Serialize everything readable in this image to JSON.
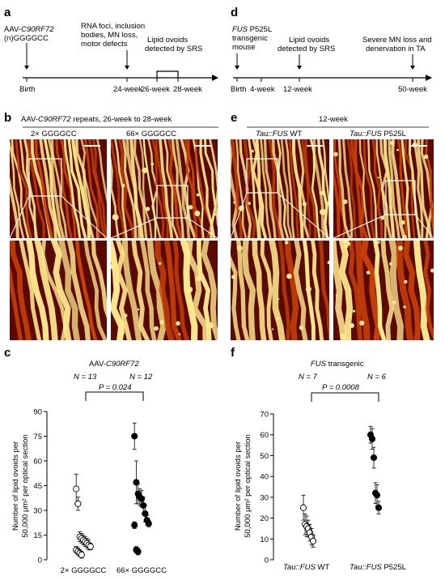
{
  "panels": {
    "a": {
      "letter": "a",
      "construct_line1": "AAV-",
      "construct_italic": "C90RF72",
      "construct_line2": "(n)GGGGCC",
      "ev_24_l1": "RNA foci, inclusion",
      "ev_24_l2": "bodies, MN loss,",
      "ev_24_l3": "motor defects",
      "ev_srs_l1": "Lipid ovoids",
      "ev_srs_l2": "detected by SRS",
      "t_birth": "Birth",
      "t_24": "24-week",
      "t_26": "26-week",
      "t_28": "28-week"
    },
    "b": {
      "letter": "b",
      "title_pre": "AAV-",
      "title_italic": "C90RF72",
      "title_post": " repeats, 26-week to 28-week",
      "label_left": "2× GGGGCC",
      "label_right": "66× GGGGCC"
    },
    "d": {
      "letter": "d",
      "title_italic": "FUS",
      "title_post": " P525L",
      "title_l2": "transgenic",
      "title_l3": "mouse",
      "ev_srs_l1": "Lipid ovoids",
      "ev_srs_l2": "detected by SRS",
      "ev_50_l1": "Severe MN loss and",
      "ev_50_l2": "denervation in TA",
      "t_birth": "Birth",
      "t_4": "4-week",
      "t_12": "12-week",
      "t_50": "50-week"
    },
    "e": {
      "letter": "e",
      "title": "12-week",
      "label_left_italic": "Tau::FUS",
      "label_left_post": " WT",
      "label_right_italic": "Tau::FUS",
      "label_right_post": " P525L"
    },
    "c": {
      "letter": "c",
      "title_pre": "AAV-",
      "title_italic": "C90RF72",
      "n_left": "N = 13",
      "n_right": "N = 12",
      "p_value": "P = 0.024",
      "ylabel_l1": "Number of lipid ovoids per",
      "ylabel_l2": "50,000 μm² per optical section"
    },
    "f": {
      "letter": "f",
      "title_italic": "FUS",
      "title_post": " transgenic",
      "n_left": "N = 7",
      "n_right": "N = 6",
      "p_value": "P = 0.0008",
      "ylabel_l1": "Number of lipid ovoids per",
      "ylabel_l2": "50,000 μm² per optical section",
      "xlabel_left_italic": "Tau::FUS",
      "xlabel_left_post": " WT",
      "xlabel_right_italic": "Tau::FUS",
      "xlabel_right_post": " P525L"
    }
  },
  "colors": {
    "image_dark": "#5a0a00",
    "image_mid": "#c8400a",
    "image_bright": "#ffe890",
    "scale_bar": "#ffffff"
  },
  "chart_data": [
    {
      "panel": "c",
      "type": "scatter",
      "categories": [
        "2× GGGGCC",
        "66× GGGGCC"
      ],
      "ylim": [
        0,
        90
      ],
      "yticks": [
        0,
        15,
        30,
        45,
        60,
        75,
        90
      ],
      "series": [
        {
          "category": "2× GGGGCC",
          "marker": "open-circle",
          "points": [
            {
              "y": 43,
              "err": 9
            },
            {
              "y": 34,
              "err": 4
            },
            {
              "y": 14,
              "err": 3
            },
            {
              "y": 13,
              "err": 3
            },
            {
              "y": 12,
              "err": 3
            },
            {
              "y": 11,
              "err": 3
            },
            {
              "y": 10,
              "err": 3
            },
            {
              "y": 9,
              "err": 3
            },
            {
              "y": 8,
              "err": 2
            },
            {
              "y": 6,
              "err": 2
            },
            {
              "y": 5,
              "err": 2
            },
            {
              "y": 4,
              "err": 2
            },
            {
              "y": 3,
              "err": 2
            }
          ]
        },
        {
          "category": "66× GGGGCC",
          "marker": "filled-circle",
          "points": [
            {
              "y": 75,
              "err": 8
            },
            {
              "y": 47,
              "err": 13
            },
            {
              "y": 40,
              "err": 6
            },
            {
              "y": 38,
              "err": 5
            },
            {
              "y": 37,
              "err": 5
            },
            {
              "y": 33,
              "err": 5
            },
            {
              "y": 28,
              "err": 5
            },
            {
              "y": 24,
              "err": 3
            },
            {
              "y": 22,
              "err": 2
            },
            {
              "y": 21,
              "err": 2
            },
            {
              "y": 6,
              "err": 2
            },
            {
              "y": 5,
              "err": 2
            }
          ]
        }
      ]
    },
    {
      "panel": "f",
      "type": "scatter",
      "categories": [
        "Tau::FUS WT",
        "Tau::FUS P525L"
      ],
      "ylim": [
        0,
        70
      ],
      "yticks": [
        0,
        10,
        20,
        30,
        40,
        50,
        60,
        70
      ],
      "series": [
        {
          "category": "Tau::FUS WT",
          "marker": "open-circle",
          "points": [
            {
              "y": 25,
              "err": 6
            },
            {
              "y": 17,
              "err": 5
            },
            {
              "y": 16,
              "err": 5
            },
            {
              "y": 15,
              "err": 4
            },
            {
              "y": 13,
              "err": 4
            },
            {
              "y": 11,
              "err": 4
            },
            {
              "y": 9,
              "err": 3
            }
          ]
        },
        {
          "category": "Tau::FUS P525L",
          "marker": "filled-circle",
          "points": [
            {
              "y": 60,
              "err": 4
            },
            {
              "y": 58,
              "err": 5
            },
            {
              "y": 49,
              "err": 5
            },
            {
              "y": 32,
              "err": 5
            },
            {
              "y": 31,
              "err": 5
            },
            {
              "y": 25,
              "err": 3
            }
          ]
        }
      ]
    }
  ]
}
